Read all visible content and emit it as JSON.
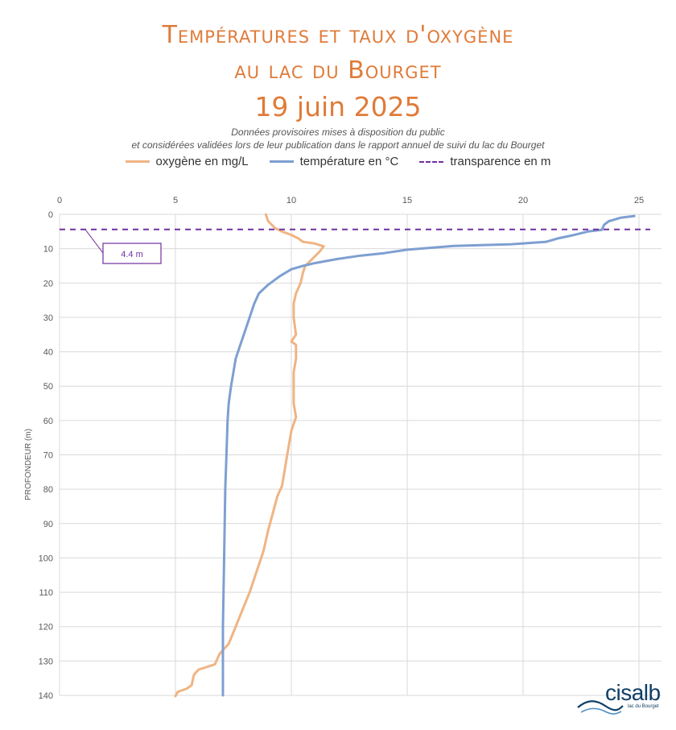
{
  "title": {
    "line1": "Températures et taux d'oxygène",
    "line2": "au lac du Bourget",
    "line3": "19 juin 2025"
  },
  "subtitle": {
    "line1": "Données provisoires mises à disposition du public",
    "line2": "et considérées validées lors de leur publication dans le rapport annuel de suivi du lac du Bourget"
  },
  "logo": {
    "name": "cisalb",
    "tagline": "lac du Bourget"
  },
  "chart_data": {
    "type": "line",
    "x_axis": {
      "position": "top",
      "min": 0,
      "max": 25,
      "ticks": [
        0,
        5,
        10,
        15,
        20,
        25
      ],
      "grid": true
    },
    "y_axis": {
      "label": "PROFONDEUR (m)",
      "min": 0,
      "max": 140,
      "inverted": true,
      "ticks": [
        0,
        10,
        20,
        30,
        40,
        50,
        60,
        70,
        80,
        90,
        100,
        110,
        120,
        130,
        140
      ],
      "grid": true
    },
    "legend_position": "top",
    "series": [
      {
        "name": "oxygène en mg/L",
        "color": "#f0b483",
        "points": [
          [
            8.9,
            0
          ],
          [
            9.0,
            2
          ],
          [
            9.3,
            4
          ],
          [
            9.6,
            5
          ],
          [
            10.0,
            6
          ],
          [
            10.3,
            7
          ],
          [
            10.5,
            8
          ],
          [
            11.0,
            8.5
          ],
          [
            11.4,
            9.3
          ],
          [
            11.2,
            11
          ],
          [
            10.9,
            13
          ],
          [
            10.6,
            15
          ],
          [
            10.5,
            17
          ],
          [
            10.4,
            20
          ],
          [
            10.2,
            23
          ],
          [
            10.1,
            26
          ],
          [
            10.1,
            30
          ],
          [
            10.2,
            35
          ],
          [
            10.0,
            37
          ],
          [
            10.2,
            38
          ],
          [
            10.2,
            42
          ],
          [
            10.1,
            46
          ],
          [
            10.1,
            50
          ],
          [
            10.1,
            55
          ],
          [
            10.2,
            59
          ],
          [
            10.0,
            63
          ],
          [
            9.9,
            67
          ],
          [
            9.8,
            71
          ],
          [
            9.7,
            75
          ],
          [
            9.6,
            79
          ],
          [
            9.4,
            82
          ],
          [
            9.2,
            87
          ],
          [
            9.0,
            92
          ],
          [
            8.8,
            98
          ],
          [
            8.5,
            104
          ],
          [
            8.2,
            110
          ],
          [
            7.9,
            115
          ],
          [
            7.6,
            120
          ],
          [
            7.3,
            125
          ],
          [
            6.9,
            128
          ],
          [
            6.7,
            131
          ],
          [
            6.0,
            132.5
          ],
          [
            5.8,
            134
          ],
          [
            5.7,
            137
          ],
          [
            5.5,
            138
          ],
          [
            5.1,
            139
          ],
          [
            5.0,
            140.2
          ]
        ]
      },
      {
        "name": "température en °C",
        "color": "#7e9fd1",
        "points": [
          [
            24.8,
            0.5
          ],
          [
            24.2,
            1
          ],
          [
            23.7,
            2
          ],
          [
            23.5,
            3
          ],
          [
            23.4,
            4.5
          ],
          [
            22.8,
            5
          ],
          [
            22.2,
            6
          ],
          [
            21.5,
            7
          ],
          [
            21.0,
            8
          ],
          [
            19.5,
            8.7
          ],
          [
            17.0,
            9.2
          ],
          [
            15.0,
            10.3
          ],
          [
            14.0,
            11.3
          ],
          [
            13.0,
            12
          ],
          [
            12.0,
            13
          ],
          [
            11.0,
            14.2
          ],
          [
            10.5,
            15
          ],
          [
            10.0,
            16
          ],
          [
            9.5,
            18
          ],
          [
            9.0,
            20.5
          ],
          [
            8.6,
            23
          ],
          [
            8.4,
            26
          ],
          [
            8.2,
            30
          ],
          [
            8.0,
            34
          ],
          [
            7.8,
            38
          ],
          [
            7.6,
            42
          ],
          [
            7.5,
            46
          ],
          [
            7.4,
            50
          ],
          [
            7.3,
            55
          ],
          [
            7.25,
            60
          ],
          [
            7.2,
            70
          ],
          [
            7.15,
            80
          ],
          [
            7.1,
            100
          ],
          [
            7.05,
            120
          ],
          [
            7.05,
            140
          ]
        ]
      },
      {
        "name": "transparence en m",
        "color": "#7030a0",
        "dashed": true,
        "value": 4.4,
        "annotation": "4.4 m"
      }
    ]
  }
}
